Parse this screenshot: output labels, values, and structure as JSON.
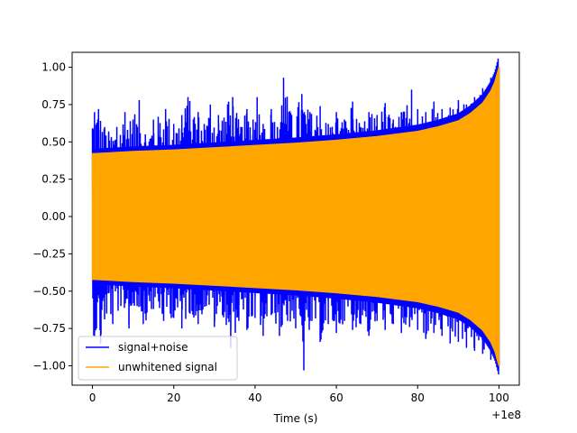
{
  "chart_data": {
    "type": "line",
    "title": "",
    "xlabel": "Time (s)",
    "ylabel": "",
    "x_offset_label": "+1e8",
    "xlim": [
      -5,
      105
    ],
    "ylim": [
      -1.13,
      1.1
    ],
    "x_ticks": [
      {
        "value": 0,
        "label": "0"
      },
      {
        "value": 20,
        "label": "20"
      },
      {
        "value": 40,
        "label": "40"
      },
      {
        "value": 60,
        "label": "60"
      },
      {
        "value": 80,
        "label": "80"
      },
      {
        "value": 100,
        "label": "100"
      }
    ],
    "y_ticks": [
      {
        "value": 1.0,
        "label": "1.00"
      },
      {
        "value": 0.75,
        "label": "0.75"
      },
      {
        "value": 0.5,
        "label": "0.50"
      },
      {
        "value": 0.25,
        "label": "0.25"
      },
      {
        "value": 0.0,
        "label": "0.00"
      },
      {
        "value": -0.25,
        "label": "−0.25"
      },
      {
        "value": -0.5,
        "label": "−0.50"
      },
      {
        "value": -0.75,
        "label": "−0.75"
      },
      {
        "value": -1.0,
        "label": "−1.00"
      }
    ],
    "grid": false,
    "legend_position": "lower-left",
    "series": [
      {
        "name": "signal+noise",
        "color": "#0000ff",
        "x_range": [
          0,
          100
        ],
        "upper_peaks": [
          {
            "x": 0.5,
            "y": 0.7
          },
          {
            "x": 1.5,
            "y": 0.72
          },
          {
            "x": 3,
            "y": 0.6
          },
          {
            "x": 4,
            "y": 0.57
          },
          {
            "x": 6,
            "y": 0.6
          },
          {
            "x": 8,
            "y": 0.7
          },
          {
            "x": 10,
            "y": 0.65
          },
          {
            "x": 11.5,
            "y": 0.78
          },
          {
            "x": 13,
            "y": 0.55
          },
          {
            "x": 15,
            "y": 0.65
          },
          {
            "x": 18,
            "y": 0.72
          },
          {
            "x": 20,
            "y": 0.62
          },
          {
            "x": 22,
            "y": 0.68
          },
          {
            "x": 23.5,
            "y": 0.8
          },
          {
            "x": 26,
            "y": 0.7
          },
          {
            "x": 27.5,
            "y": 0.62
          },
          {
            "x": 29,
            "y": 0.75
          },
          {
            "x": 31,
            "y": 0.68
          },
          {
            "x": 33.5,
            "y": 0.77
          },
          {
            "x": 34.5,
            "y": 0.8
          },
          {
            "x": 36.5,
            "y": 0.6
          },
          {
            "x": 38,
            "y": 0.72
          },
          {
            "x": 39.5,
            "y": 0.65
          },
          {
            "x": 40.5,
            "y": 0.8
          },
          {
            "x": 42,
            "y": 0.62
          },
          {
            "x": 44,
            "y": 0.72
          },
          {
            "x": 45.5,
            "y": 0.6
          },
          {
            "x": 47,
            "y": 0.93
          },
          {
            "x": 49,
            "y": 0.68
          },
          {
            "x": 51.5,
            "y": 0.82
          },
          {
            "x": 53.5,
            "y": 0.7
          },
          {
            "x": 56,
            "y": 0.74
          },
          {
            "x": 58,
            "y": 0.62
          },
          {
            "x": 60,
            "y": 0.7
          },
          {
            "x": 62,
            "y": 0.65
          },
          {
            "x": 64,
            "y": 0.77
          },
          {
            "x": 66,
            "y": 0.6
          },
          {
            "x": 68,
            "y": 0.7
          },
          {
            "x": 70,
            "y": 0.68
          },
          {
            "x": 72,
            "y": 0.76
          },
          {
            "x": 74,
            "y": 0.65
          },
          {
            "x": 76,
            "y": 0.7
          },
          {
            "x": 78.5,
            "y": 0.85
          },
          {
            "x": 80,
            "y": 0.72
          },
          {
            "x": 82,
            "y": 0.7
          },
          {
            "x": 84,
            "y": 0.77
          },
          {
            "x": 86,
            "y": 0.72
          },
          {
            "x": 88,
            "y": 0.73
          },
          {
            "x": 90,
            "y": 0.78
          },
          {
            "x": 92,
            "y": 0.75
          },
          {
            "x": 94,
            "y": 0.8
          },
          {
            "x": 96,
            "y": 0.86
          },
          {
            "x": 98,
            "y": 0.93
          },
          {
            "x": 100,
            "y": 1.0
          }
        ],
        "lower_peaks": [
          {
            "x": 0.5,
            "y": -0.8
          },
          {
            "x": 2,
            "y": -0.85
          },
          {
            "x": 3.5,
            "y": -0.65
          },
          {
            "x": 5,
            "y": -0.72
          },
          {
            "x": 7,
            "y": -0.6
          },
          {
            "x": 9,
            "y": -0.75
          },
          {
            "x": 11,
            "y": -0.6
          },
          {
            "x": 12.5,
            "y": -0.72
          },
          {
            "x": 15,
            "y": -0.62
          },
          {
            "x": 17.5,
            "y": -0.7
          },
          {
            "x": 20,
            "y": -0.68
          },
          {
            "x": 22,
            "y": -0.75
          },
          {
            "x": 24,
            "y": -0.65
          },
          {
            "x": 26,
            "y": -0.72
          },
          {
            "x": 28,
            "y": -0.6
          },
          {
            "x": 30,
            "y": -0.74
          },
          {
            "x": 32,
            "y": -0.66
          },
          {
            "x": 34,
            "y": -0.88
          },
          {
            "x": 36,
            "y": -0.7
          },
          {
            "x": 38,
            "y": -0.76
          },
          {
            "x": 40,
            "y": -0.68
          },
          {
            "x": 42,
            "y": -0.8
          },
          {
            "x": 44,
            "y": -0.66
          },
          {
            "x": 46,
            "y": -0.8
          },
          {
            "x": 48,
            "y": -0.7
          },
          {
            "x": 50,
            "y": -0.75
          },
          {
            "x": 52,
            "y": -1.03
          },
          {
            "x": 54,
            "y": -0.7
          },
          {
            "x": 56,
            "y": -0.84
          },
          {
            "x": 58,
            "y": -0.72
          },
          {
            "x": 60,
            "y": -0.78
          },
          {
            "x": 62,
            "y": -0.7
          },
          {
            "x": 64,
            "y": -0.76
          },
          {
            "x": 66,
            "y": -0.72
          },
          {
            "x": 68,
            "y": -0.8
          },
          {
            "x": 70,
            "y": -0.7
          },
          {
            "x": 72,
            "y": -0.76
          },
          {
            "x": 74,
            "y": -0.72
          },
          {
            "x": 76,
            "y": -0.78
          },
          {
            "x": 78,
            "y": -0.74
          },
          {
            "x": 80,
            "y": -0.76
          },
          {
            "x": 82,
            "y": -0.82
          },
          {
            "x": 84,
            "y": -0.78
          },
          {
            "x": 86,
            "y": -0.8
          },
          {
            "x": 88,
            "y": -0.85
          },
          {
            "x": 90,
            "y": -0.84
          },
          {
            "x": 92,
            "y": -0.88
          },
          {
            "x": 94,
            "y": -0.9
          },
          {
            "x": 96,
            "y": -0.92
          },
          {
            "x": 98,
            "y": -0.96
          },
          {
            "x": 100,
            "y": -1.0
          }
        ]
      },
      {
        "name": "unwhitened signal",
        "color": "#ffa500",
        "x_range": [
          0,
          100
        ],
        "envelope": [
          {
            "x": 0,
            "y": 0.42
          },
          {
            "x": 10,
            "y": 0.435
          },
          {
            "x": 20,
            "y": 0.445
          },
          {
            "x": 30,
            "y": 0.46
          },
          {
            "x": 40,
            "y": 0.475
          },
          {
            "x": 50,
            "y": 0.49
          },
          {
            "x": 60,
            "y": 0.51
          },
          {
            "x": 70,
            "y": 0.535
          },
          {
            "x": 80,
            "y": 0.57
          },
          {
            "x": 85,
            "y": 0.6
          },
          {
            "x": 90,
            "y": 0.64
          },
          {
            "x": 93,
            "y": 0.69
          },
          {
            "x": 96,
            "y": 0.76
          },
          {
            "x": 98,
            "y": 0.84
          },
          {
            "x": 99,
            "y": 0.9
          },
          {
            "x": 100,
            "y": 1.0
          }
        ]
      }
    ]
  }
}
